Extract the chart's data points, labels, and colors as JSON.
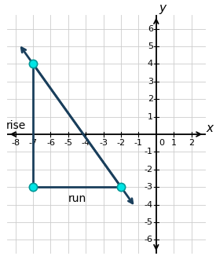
{
  "xlim": [
    -8.5,
    2.8
  ],
  "ylim": [
    -6.8,
    6.8
  ],
  "xticks": [
    -8,
    -7,
    -6,
    -5,
    -4,
    -3,
    -2,
    -1,
    1,
    2
  ],
  "yticks": [
    -6,
    -5,
    -4,
    -3,
    -2,
    -1,
    1,
    2,
    3,
    4,
    5,
    6
  ],
  "point1": [
    -7,
    4
  ],
  "point2": [
    -2,
    -3
  ],
  "point3": [
    -7,
    -3
  ],
  "line_color": "#1a3f5c",
  "triangle_color": "#1a3f5c",
  "dot_color": "#00e5e5",
  "dot_edgecolor": "#009999",
  "rise_label": "rise",
  "run_label": "run",
  "xlabel": "x",
  "ylabel": "y",
  "arrow_extension": 1.4,
  "grid_color": "#cccccc",
  "axis_color": "#000000",
  "font_size_tick": 8,
  "font_size_axlabel": 11,
  "font_size_annotation": 10
}
